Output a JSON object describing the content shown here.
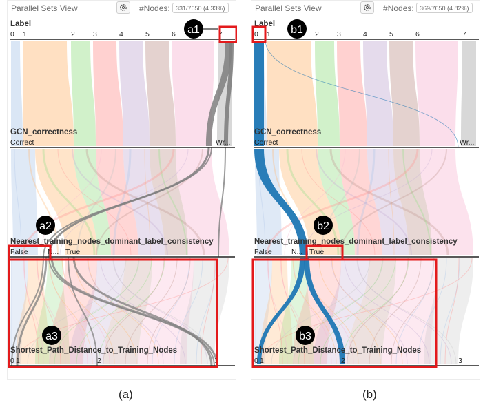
{
  "panels": [
    {
      "title": "Parallel Sets View",
      "nodes_label": "#Nodes:",
      "nodes_count": "331/7650 (4.33%)",
      "caption": "(a)",
      "axes": {
        "label": {
          "title": "Label",
          "ticks": [
            "0",
            "1",
            "2",
            "3",
            "4",
            "5",
            "6",
            "7"
          ]
        },
        "gcn": {
          "title": "GCN_correctness",
          "ticks": [
            "Correct",
            "Wr..."
          ]
        },
        "nearest": {
          "title": "Nearest_training_nodes_dominant_label_consistency",
          "ticks": [
            "False",
            "N...",
            "True"
          ]
        },
        "shortest": {
          "title": "Shortest_Path_Distance_to_Training_Nodes",
          "ticks": [
            "0",
            "1",
            "2",
            "3"
          ]
        }
      },
      "annotations": [
        "a1",
        "a2",
        "a3"
      ]
    },
    {
      "title": "Parallel Sets View",
      "nodes_label": "#Nodes:",
      "nodes_count": "369/7650 (4.82%)",
      "caption": "(b)",
      "axes": {
        "label": {
          "title": "Label",
          "ticks": [
            "0",
            "1",
            "2",
            "3",
            "4",
            "5",
            "6",
            "7"
          ]
        },
        "gcn": {
          "title": "GCN_correctness",
          "ticks": [
            "Correct",
            "Wr..."
          ]
        },
        "nearest": {
          "title": "Nearest_training_nodes_dominant_label_consistency",
          "ticks": [
            "False",
            "N...",
            "True"
          ]
        },
        "shortest": {
          "title": "Shortest_Path_Distance_to_Training_Nodes",
          "ticks": [
            "0",
            "1",
            "2",
            "3"
          ]
        }
      },
      "annotations": [
        "b1",
        "b2",
        "b3"
      ]
    }
  ],
  "colors": {
    "label_0": "#aec7e8",
    "label_1": "#ffbb78",
    "label_2": "#98df8a",
    "label_3": "#ff9896",
    "label_4": "#c5b0d5",
    "label_5": "#c49c94",
    "label_6": "#f7b6d2",
    "label_7": "#c7c7c7",
    "highlight_a": "#7f7f7f",
    "highlight_b": "#1f77b4",
    "annotation_box": "#e31a1c",
    "annotation_badge": "#000000"
  }
}
